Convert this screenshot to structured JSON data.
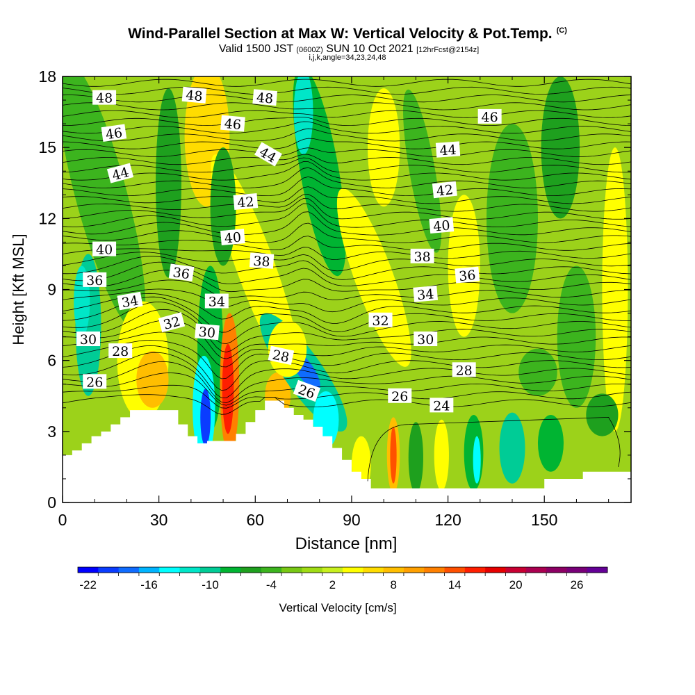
{
  "chart_data": {
    "type": "heatmap",
    "title": "Wind-Parallel Section at Max W: Vertical Velocity & Pot.Temp.",
    "title_mark": "(C)",
    "subtitle": {
      "valid": "Valid 1500 JST",
      "zulu": "(0600Z)",
      "date": "SUN 10 Oct 2021",
      "forecast": "[12hrFcst@2154z]"
    },
    "subsubtitle": "i,j,k,angle=34,23,24,48",
    "xlabel": "Distance [nm]",
    "ylabel": "Height [Kft MSL]",
    "xlim": [
      0,
      177
    ],
    "ylim": [
      0,
      18
    ],
    "x_ticks": [
      "0",
      "30",
      "60",
      "90",
      "120",
      "150"
    ],
    "y_ticks": [
      "0",
      "3",
      "6",
      "9",
      "12",
      "15",
      "18"
    ],
    "colorbar": {
      "label": "Vertical Velocity [cm/s]",
      "tick_labels": [
        "-22",
        "-16",
        "-10",
        "-4",
        "2",
        "8",
        "14",
        "20",
        "26"
      ],
      "colors": [
        "#0000ff",
        "#0a3cff",
        "#0f6cff",
        "#00b4ff",
        "#00ffff",
        "#00e6c8",
        "#00cc96",
        "#00b432",
        "#1ea01e",
        "#3cb41e",
        "#78c814",
        "#a0dc14",
        "#c8f01e",
        "#ffff00",
        "#ffdc00",
        "#ffbe00",
        "#ffa000",
        "#ff8000",
        "#ff5000",
        "#ff1e00",
        "#e60000",
        "#c80032",
        "#aa0050",
        "#8c0064",
        "#780078",
        "#640096"
      ]
    },
    "theta_labels": [
      "48",
      "48",
      "48",
      "46",
      "46",
      "46",
      "44",
      "44",
      "44",
      "42",
      "42",
      "40",
      "40",
      "40",
      "38",
      "38",
      "36",
      "36",
      "36",
      "34",
      "34",
      "34",
      "32",
      "32",
      "30",
      "30",
      "30",
      "28",
      "28",
      "28",
      "26",
      "26",
      "26",
      "24"
    ],
    "terrain_profile": {
      "x": [
        0,
        3,
        6,
        9,
        12,
        15,
        18,
        21,
        24,
        27,
        30,
        33,
        36,
        39,
        42,
        45,
        48,
        51,
        54,
        57,
        60,
        63,
        66,
        69,
        72,
        75,
        78,
        81,
        84,
        87,
        90,
        93,
        96,
        99,
        102,
        105,
        108,
        111,
        114,
        117,
        120,
        123,
        126,
        129,
        132,
        135,
        138,
        141,
        144,
        147,
        150,
        153,
        156,
        159,
        162,
        165,
        168,
        171,
        174,
        177
      ],
      "height_kft": [
        2.0,
        2.2,
        2.5,
        2.8,
        3.0,
        3.3,
        3.6,
        3.9,
        3.9,
        3.9,
        3.9,
        3.9,
        3.3,
        2.8,
        2.5,
        2.6,
        2.6,
        2.6,
        2.9,
        3.4,
        3.9,
        4.3,
        4.3,
        4.0,
        3.7,
        3.5,
        3.2,
        2.8,
        2.3,
        1.8,
        1.3,
        1.0,
        0.6,
        0.6,
        0.6,
        0.6,
        0.6,
        0.6,
        0.6,
        0.6,
        0.6,
        0.6,
        0.6,
        0.6,
        0.6,
        0.6,
        0.6,
        0.6,
        0.6,
        0.6,
        1.0,
        1.0,
        1.0,
        1.0,
        1.3,
        1.3,
        1.3,
        1.3,
        1.3,
        1.3
      ]
    }
  }
}
